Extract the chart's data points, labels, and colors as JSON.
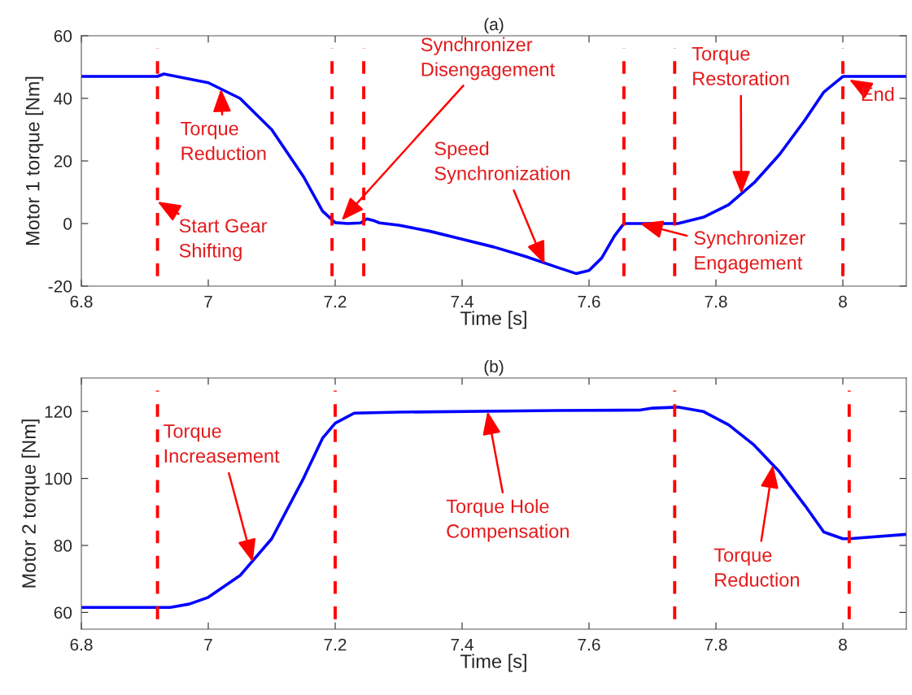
{
  "chart_data": [
    {
      "type": "line",
      "title": "(a)",
      "xlabel": "Time [s]",
      "ylabel": "Motor 1 torque [Nm]",
      "xlim": [
        6.8,
        8.1
      ],
      "xticks": [
        6.8,
        7,
        7.2,
        7.4,
        7.6,
        7.8,
        8
      ],
      "ylim": [
        -20,
        60
      ],
      "yticks": [
        -20,
        0,
        20,
        40,
        60
      ],
      "grid": false,
      "legend": false,
      "line_style": "solid",
      "marker": "none",
      "series": [
        {
          "color": "#0000ff",
          "x": [
            6.8,
            6.92,
            6.93,
            7.0,
            7.05,
            7.1,
            7.15,
            7.18,
            7.2,
            7.22,
            7.24,
            7.25,
            7.26,
            7.27,
            7.3,
            7.35,
            7.4,
            7.45,
            7.5,
            7.55,
            7.58,
            7.6,
            7.62,
            7.64,
            7.655,
            7.74,
            7.78,
            7.82,
            7.86,
            7.9,
            7.94,
            7.97,
            8.0,
            8.1
          ],
          "values": [
            47,
            47,
            47.8,
            45,
            40,
            30,
            15,
            4,
            0.3,
            0,
            0.2,
            1.5,
            1,
            0.2,
            -0.5,
            -2.5,
            -5,
            -7.5,
            -10.5,
            -14,
            -16,
            -15,
            -11,
            -4,
            0,
            0,
            2,
            6,
            13,
            22,
            33,
            42,
            47,
            47
          ]
        }
      ],
      "ref_lines": [
        {
          "axis": "x",
          "value": 6.92,
          "color": "#ff0000",
          "line_style": "dashed"
        },
        {
          "axis": "x",
          "value": 7.195,
          "color": "#ff0000",
          "line_style": "dashed"
        },
        {
          "axis": "x",
          "value": 7.245,
          "color": "#ff0000",
          "line_style": "dashed"
        },
        {
          "axis": "x",
          "value": 7.655,
          "color": "#ff0000",
          "line_style": "dashed"
        },
        {
          "axis": "x",
          "value": 7.735,
          "color": "#ff0000",
          "line_style": "dashed"
        },
        {
          "axis": "x",
          "value": 8.0,
          "color": "#ff0000",
          "line_style": "dashed"
        }
      ],
      "annotations": [
        {
          "text": "Start Gear\nShifting",
          "x": 6.92,
          "y": 7
        },
        {
          "text": "Torque\nReduction",
          "x": 7.02,
          "y": 43
        },
        {
          "text": "Synchronizer\nDisengagement",
          "x": 7.21,
          "y": 1
        },
        {
          "text": "Speed\nSynchronization",
          "x": 7.53,
          "y": -13
        },
        {
          "text": "Torque\nRestoration",
          "x": 7.84,
          "y": 9.5
        },
        {
          "text": "Synchronizer\nEngagement",
          "x": 7.68,
          "y": 0
        },
        {
          "text": "End",
          "x": 8.01,
          "y": 46
        }
      ]
    },
    {
      "type": "line",
      "title": "(b)",
      "xlabel": "Time [s]",
      "ylabel": "Motor 2 torque [Nm]",
      "xlim": [
        6.8,
        8.1
      ],
      "xticks": [
        6.8,
        7,
        7.2,
        7.4,
        7.6,
        7.8,
        8
      ],
      "ylim": [
        55,
        130
      ],
      "yticks": [
        60,
        80,
        100,
        120
      ],
      "grid": false,
      "legend": false,
      "line_style": "solid",
      "marker": "none",
      "series": [
        {
          "color": "#0000ff",
          "x": [
            6.8,
            6.94,
            6.97,
            7.0,
            7.05,
            7.1,
            7.15,
            7.18,
            7.2,
            7.23,
            7.3,
            7.55,
            7.68,
            7.7,
            7.74,
            7.78,
            7.82,
            7.86,
            7.9,
            7.94,
            7.97,
            8.0,
            8.01,
            8.1
          ],
          "values": [
            61.5,
            61.5,
            62.5,
            64.5,
            71,
            82,
            100,
            112,
            116.5,
            119.5,
            119.8,
            120.3,
            120.4,
            121,
            121.3,
            120,
            116,
            110,
            102,
            92,
            84,
            82,
            82,
            83.3
          ]
        }
      ],
      "ref_lines": [
        {
          "axis": "x",
          "value": 6.92,
          "color": "#ff0000",
          "line_style": "dashed"
        },
        {
          "axis": "x",
          "value": 7.2,
          "color": "#ff0000",
          "line_style": "dashed"
        },
        {
          "axis": "x",
          "value": 7.735,
          "color": "#ff0000",
          "line_style": "dashed"
        },
        {
          "axis": "x",
          "value": 8.01,
          "color": "#ff0000",
          "line_style": "dashed"
        }
      ],
      "annotations": [
        {
          "text": "Torque\nIncreasement",
          "x": 7.07,
          "y": 75
        },
        {
          "text": "Torque Hole\nCompensation",
          "x": 7.44,
          "y": 120
        },
        {
          "text": "Torque\nReduction",
          "x": 7.89,
          "y": 104
        }
      ]
    }
  ]
}
